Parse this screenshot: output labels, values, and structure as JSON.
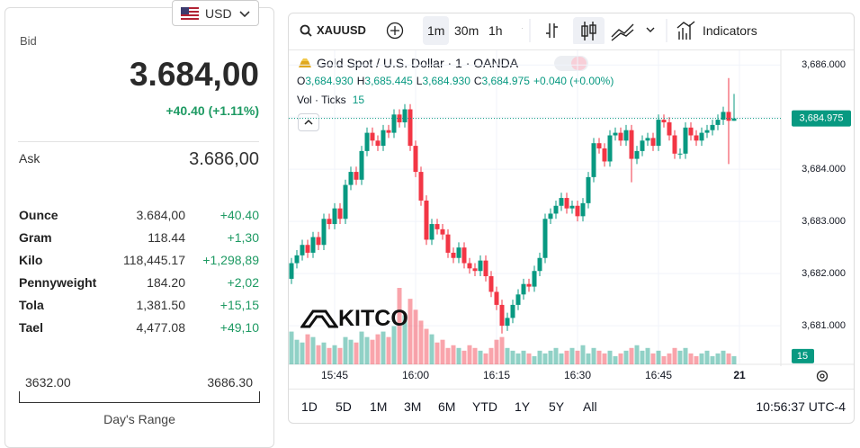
{
  "panel": {
    "currency": "USD",
    "bid_label": "Bid",
    "bid": "3.684,00",
    "bid_change": "+40.40 (+1.11%)",
    "ask_label": "Ask",
    "ask": "3.686,00",
    "rows": [
      [
        "Ounce",
        "3.684,00",
        "+40.40"
      ],
      [
        "Gram",
        "118.44",
        "+1,30"
      ],
      [
        "Kilo",
        "118,445.17",
        "+1,298,89"
      ],
      [
        "Pennyweight",
        "184.20",
        "+2,02"
      ],
      [
        "Tola",
        "1,381.50",
        "+15,15"
      ],
      [
        "Tael",
        "4,477.08",
        "+49,10"
      ]
    ],
    "range_low": "3632.00",
    "range_high": "3686.30",
    "range_label": "Day's Range"
  },
  "chart_data": {
    "type": "candlestick",
    "symbol": "XAUUSD",
    "intervals": [
      "1m",
      "30m",
      "1h"
    ],
    "indicators": "Indicators",
    "title": "Gold Spot / U.S. Dollar · 1 · OANDA",
    "legend": [
      [
        "O",
        "3,684.930"
      ],
      [
        "H",
        "3,685.445"
      ],
      [
        "L",
        "3,684.930"
      ],
      [
        "C",
        "3,684.975"
      ]
    ],
    "change": "+0.040 (+0.00%)",
    "volume_label": "Vol · Ticks",
    "watermark": "KITCO",
    "ranges": [
      "1D",
      "5D",
      "1M",
      "3M",
      "6M",
      "YTD",
      "1Y",
      "5Y",
      "All"
    ],
    "clock": "10:56:37 UTC-4",
    "up_color": "#089981",
    "down_color": "#f23645",
    "grid": true,
    "xlim": [
      "15:36",
      "17:07"
    ],
    "xticks": [
      "15:45",
      "16:00",
      "16:15",
      "16:30",
      "16:45",
      {
        "value": "17:00",
        "label": "21"
      }
    ],
    "ylim": [
      3680.26,
      3686.28
    ],
    "yticks": [
      {
        "value": 3681,
        "label": "3,681.000"
      },
      {
        "value": 3682,
        "label": "3,682.000"
      },
      {
        "value": 3683,
        "label": "3,683.000"
      },
      {
        "value": 3684,
        "label": "3,684.000"
      },
      {
        "value": 3685,
        "label": "3,685.000"
      },
      {
        "value": 3686,
        "label": "3,686.000"
      }
    ],
    "last_price": {
      "value": 3684.975,
      "label": "3,684.975"
    },
    "volume_lim": [
      0,
      575
    ],
    "x": [
      "15:37",
      "15:38",
      "15:39",
      "15:40",
      "15:41",
      "15:42",
      "15:43",
      "15:44",
      "15:45",
      "15:46",
      "15:47",
      "15:48",
      "15:49",
      "15:50",
      "15:51",
      "15:52",
      "15:53",
      "15:54",
      "15:55",
      "15:56",
      "15:57",
      "15:58",
      "15:59",
      "16:00",
      "16:01",
      "16:02",
      "16:03",
      "16:04",
      "16:05",
      "16:06",
      "16:07",
      "16:08",
      "16:09",
      "16:10",
      "16:11",
      "16:12",
      "16:13",
      "16:14",
      "16:15",
      "16:16",
      "16:17",
      "16:18",
      "16:19",
      "16:20",
      "16:21",
      "16:22",
      "16:23",
      "16:24",
      "16:25",
      "16:26",
      "16:27",
      "16:28",
      "16:29",
      "16:30",
      "16:31",
      "16:32",
      "16:33",
      "16:34",
      "16:35",
      "16:36",
      "16:37",
      "16:38",
      "16:39",
      "16:40",
      "16:41",
      "16:42",
      "16:43",
      "16:44",
      "16:45",
      "16:46",
      "16:47",
      "16:48",
      "16:49",
      "16:50",
      "16:51",
      "16:52",
      "16:53",
      "16:54",
      "16:55",
      "16:56",
      "16:57",
      "16:58",
      "16:59"
    ],
    "open": [
      3681.9,
      3682.2,
      3682.35,
      3682.55,
      3682.4,
      3682.7,
      3682.55,
      3683.05,
      3682.95,
      3683.25,
      3683.05,
      3683.7,
      3683.95,
      3683.8,
      3684.35,
      3684.7,
      3684.55,
      3684.45,
      3684.75,
      3684.7,
      3685.05,
      3684.9,
      3685.15,
      3684.45,
      3683.95,
      3683.4,
      3682.65,
      3682.95,
      3682.85,
      3682.75,
      3682.4,
      3682.3,
      3682.5,
      3682.2,
      3682.1,
      3682.05,
      3682.25,
      3681.95,
      3681.65,
      3681.4,
      3681.0,
      3681.15,
      3681.4,
      3681.6,
      3681.8,
      3681.75,
      3682.05,
      3682.3,
      3683.05,
      3683.15,
      3683.3,
      3683.45,
      3683.25,
      3683.3,
      3683.1,
      3683.35,
      3683.85,
      3684.5,
      3684.4,
      3684.15,
      3684.65,
      3684.7,
      3684.55,
      3684.75,
      3684.2,
      3684.35,
      3684.55,
      3684.6,
      3684.45,
      3684.95,
      3684.9,
      3684.65,
      3684.3,
      3684.3,
      3684.8,
      3684.65,
      3684.55,
      3684.7,
      3684.75,
      3684.85,
      3684.95,
      3685.1,
      3684.93
    ],
    "high": [
      3682.3,
      3682.45,
      3682.65,
      3682.65,
      3682.8,
      3682.8,
      3683.15,
      3683.15,
      3683.35,
      3683.35,
      3683.8,
      3684.05,
      3684.05,
      3684.45,
      3684.8,
      3684.8,
      3684.65,
      3684.85,
      3684.85,
      3685.15,
      3685.15,
      3685.25,
      3685.25,
      3684.55,
      3684.05,
      3683.5,
      3683.05,
      3683.05,
      3682.95,
      3682.85,
      3682.5,
      3682.6,
      3682.6,
      3682.3,
      3682.2,
      3682.35,
      3682.35,
      3682.05,
      3681.75,
      3681.5,
      3681.25,
      3681.5,
      3681.7,
      3681.9,
      3681.9,
      3682.15,
      3682.4,
      3683.15,
      3683.25,
      3683.4,
      3683.55,
      3683.55,
      3683.4,
      3683.4,
      3683.45,
      3683.95,
      3684.6,
      3684.6,
      3684.5,
      3684.75,
      3684.8,
      3684.8,
      3684.85,
      3684.85,
      3684.45,
      3684.65,
      3684.7,
      3684.7,
      3685.05,
      3685.05,
      3685.0,
      3684.75,
      3684.4,
      3684.9,
      3684.9,
      3684.75,
      3684.8,
      3684.85,
      3684.95,
      3685.05,
      3685.2,
      3685.75,
      3685.445
    ],
    "low": [
      3681.8,
      3682.1,
      3682.25,
      3682.3,
      3682.3,
      3682.45,
      3682.45,
      3682.85,
      3682.85,
      3682.95,
      3682.95,
      3683.6,
      3683.7,
      3683.7,
      3684.25,
      3684.45,
      3684.35,
      3684.35,
      3684.6,
      3684.6,
      3684.8,
      3684.8,
      3684.35,
      3683.85,
      3683.3,
      3682.55,
      3682.55,
      3682.75,
      3682.65,
      3682.3,
      3682.2,
      3682.2,
      3682.1,
      3682.0,
      3681.95,
      3681.95,
      3681.85,
      3681.55,
      3681.3,
      3680.85,
      3680.9,
      3681.05,
      3681.3,
      3681.5,
      3681.65,
      3681.65,
      3681.95,
      3682.2,
      3682.95,
      3683.05,
      3683.2,
      3683.15,
      3683.15,
      3683.0,
      3683.0,
      3683.25,
      3683.75,
      3684.3,
      3684.05,
      3684.05,
      3684.55,
      3684.45,
      3684.45,
      3683.75,
      3684.1,
      3684.25,
      3684.45,
      3684.35,
      3684.35,
      3684.8,
      3684.55,
      3684.2,
      3684.2,
      3684.2,
      3684.55,
      3684.45,
      3684.45,
      3684.6,
      3684.65,
      3684.75,
      3684.85,
      3684.1,
      3684.93
    ],
    "close": [
      3682.2,
      3682.35,
      3682.55,
      3682.4,
      3682.7,
      3682.55,
      3683.05,
      3682.95,
      3683.25,
      3683.05,
      3683.7,
      3683.95,
      3683.8,
      3684.35,
      3684.7,
      3684.55,
      3684.45,
      3684.75,
      3684.7,
      3685.05,
      3684.9,
      3685.15,
      3684.45,
      3683.95,
      3683.4,
      3682.65,
      3682.95,
      3682.85,
      3682.75,
      3682.4,
      3682.3,
      3682.5,
      3682.2,
      3682.1,
      3682.05,
      3682.25,
      3681.95,
      3681.65,
      3681.4,
      3681.0,
      3681.15,
      3681.4,
      3681.6,
      3681.8,
      3681.75,
      3682.05,
      3682.3,
      3683.05,
      3683.15,
      3683.3,
      3683.45,
      3683.25,
      3683.3,
      3683.1,
      3683.35,
      3683.85,
      3684.5,
      3684.4,
      3684.15,
      3684.65,
      3684.7,
      3684.55,
      3684.75,
      3684.2,
      3684.35,
      3684.55,
      3684.6,
      3684.45,
      3684.95,
      3684.9,
      3684.65,
      3684.3,
      3684.3,
      3684.8,
      3684.65,
      3684.55,
      3684.7,
      3684.75,
      3684.85,
      3684.95,
      3685.1,
      3684.93,
      3684.975
    ],
    "volume": [
      60,
      45,
      40,
      55,
      50,
      35,
      40,
      30,
      35,
      30,
      50,
      45,
      40,
      60,
      50,
      45,
      55,
      60,
      50,
      70,
      140,
      90,
      120,
      100,
      80,
      65,
      55,
      40,
      45,
      30,
      35,
      30,
      25,
      35,
      30,
      25,
      20,
      30,
      45,
      50,
      30,
      25,
      20,
      25,
      20,
      15,
      25,
      20,
      25,
      30,
      20,
      25,
      30,
      25,
      35,
      20,
      30,
      25,
      20,
      25,
      15,
      20,
      25,
      30,
      35,
      25,
      30,
      20,
      25,
      15,
      20,
      30,
      25,
      30,
      20,
      15,
      20,
      25,
      15,
      20,
      25,
      20,
      15
    ]
  }
}
